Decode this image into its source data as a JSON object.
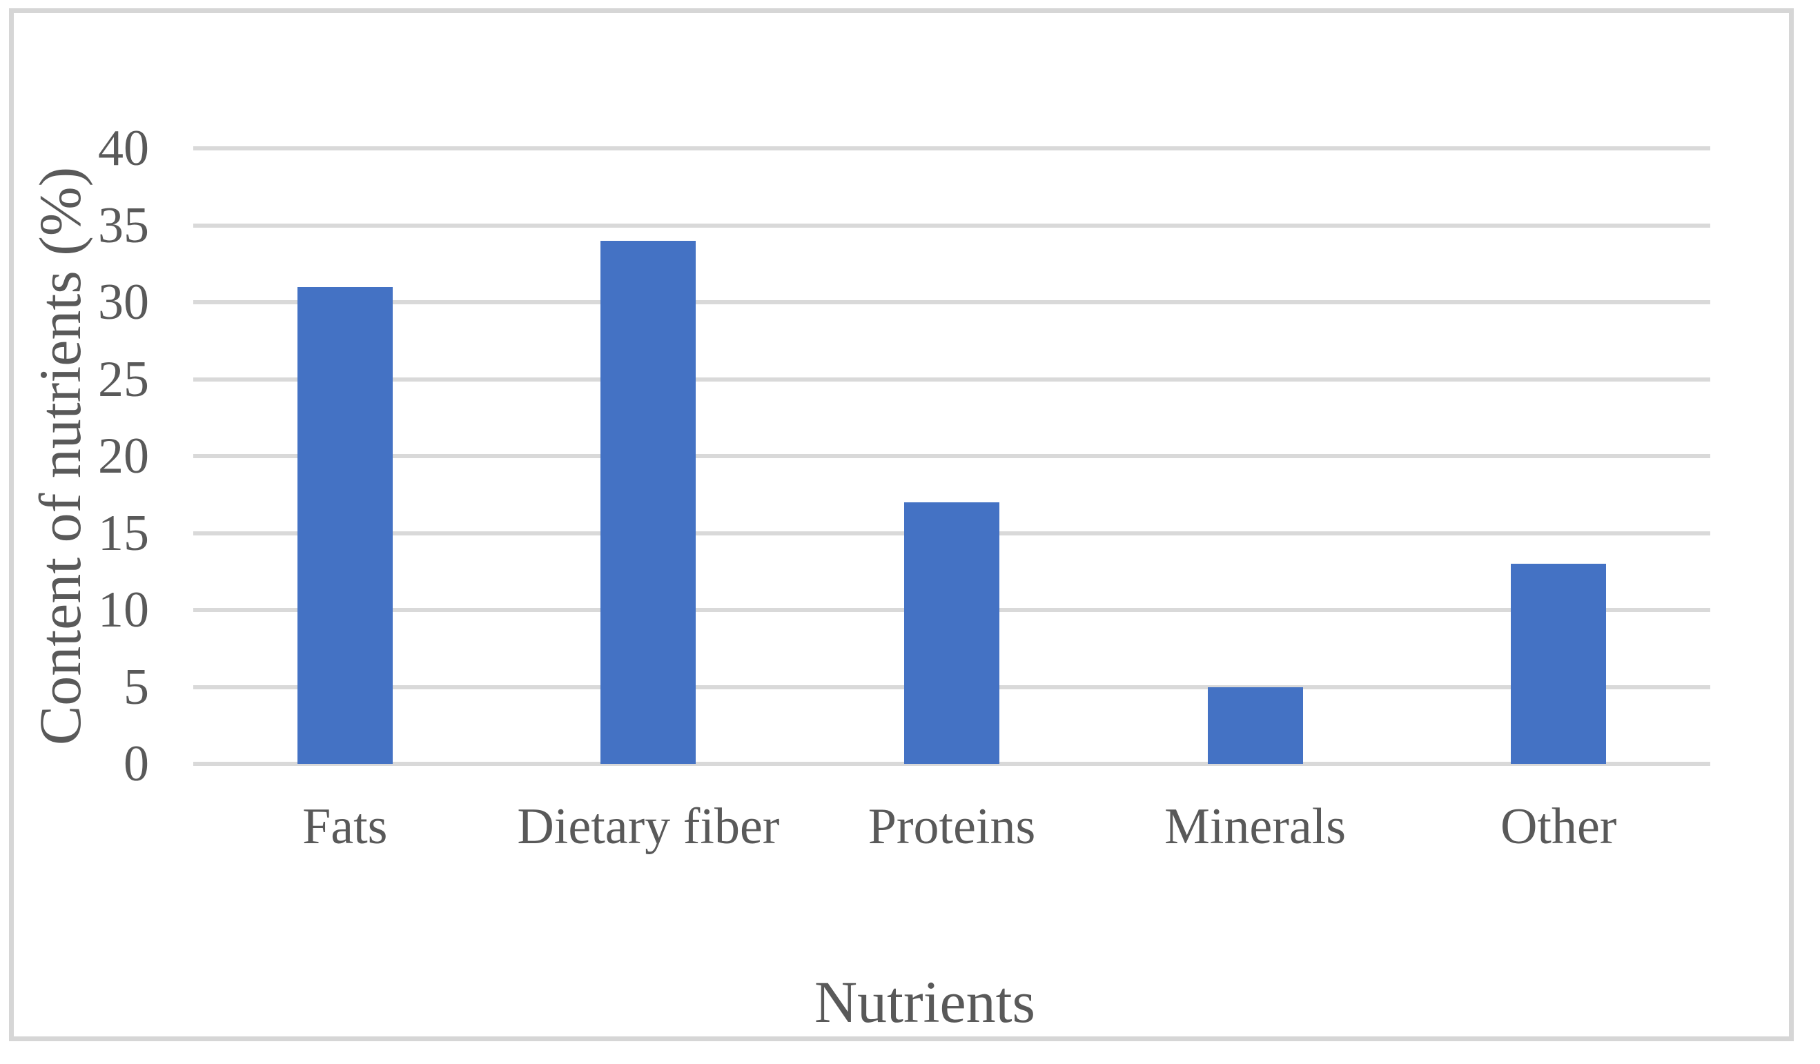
{
  "chart_data": {
    "type": "bar",
    "title": "",
    "categories": [
      "Fats",
      "Dietary fiber",
      "Proteins",
      "Minerals",
      "Other"
    ],
    "values": [
      31,
      34,
      17,
      5,
      13
    ],
    "series": [
      {
        "name": "Content of nutrients",
        "values": [
          31,
          34,
          17,
          5,
          13
        ]
      }
    ],
    "xlabel": "Nutrients",
    "ylabel": "Content of nutrients (%)",
    "ylim": [
      0,
      40
    ],
    "ytick_step": 5,
    "yticks": [
      0,
      5,
      10,
      15,
      20,
      25,
      30,
      35,
      40
    ],
    "grid": "horizontal-only",
    "legend_position": "none",
    "colors": {
      "bar_fill": "#4472c4",
      "gridline": "#d9d9d9",
      "axis_text": "#595959",
      "frame_border": "#d6d6d6",
      "background": "#ffffff"
    }
  }
}
